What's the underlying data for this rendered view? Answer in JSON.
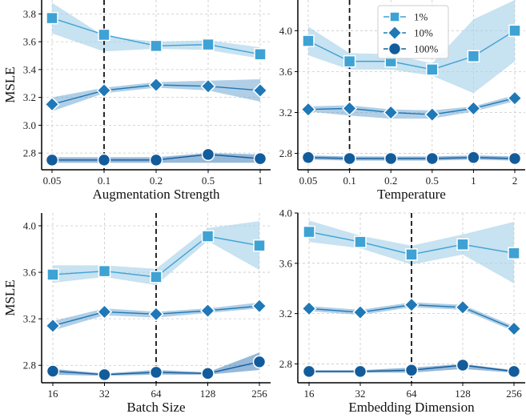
{
  "chart_data": [
    {
      "type": "line",
      "xlabel": "Augmentation Strength",
      "ylabel": "MSLE",
      "categories": [
        "0.05",
        "0.1",
        "0.2",
        "0.5",
        "1"
      ],
      "ylim": [
        2.68,
        3.9
      ],
      "yticks": [
        "2.8",
        "3.0",
        "3.2",
        "3.4",
        "3.6",
        "3.8"
      ],
      "vline_at": "0.1",
      "series": [
        {
          "name": "1%",
          "marker": "square",
          "values": [
            3.77,
            3.65,
            3.57,
            3.58,
            3.51
          ],
          "lower": [
            3.66,
            3.53,
            3.55,
            3.54,
            3.48
          ],
          "upper": [
            3.88,
            3.64,
            3.6,
            3.61,
            3.56
          ]
        },
        {
          "name": "10%",
          "marker": "diamond",
          "values": [
            3.15,
            3.25,
            3.29,
            3.28,
            3.25
          ],
          "lower": [
            3.1,
            3.23,
            3.27,
            3.25,
            3.17
          ],
          "upper": [
            3.2,
            3.27,
            3.31,
            3.32,
            3.33
          ]
        },
        {
          "name": "100%",
          "marker": "circle",
          "values": [
            2.75,
            2.75,
            2.75,
            2.79,
            2.76
          ],
          "lower": [
            2.73,
            2.73,
            2.73,
            2.73,
            2.73
          ],
          "upper": [
            2.77,
            2.77,
            2.77,
            2.8,
            2.79
          ]
        }
      ]
    },
    {
      "type": "line",
      "xlabel": "Temperature",
      "ylabel": "",
      "categories": [
        "0.05",
        "0.1",
        "0.2",
        "0.5",
        "1",
        "2"
      ],
      "ylim": [
        2.64,
        4.3
      ],
      "yticks": [
        "2.8",
        "3.2",
        "3.6",
        "4.0"
      ],
      "vline_at": "0.1",
      "series": [
        {
          "name": "1%",
          "marker": "square",
          "values": [
            3.9,
            3.7,
            3.7,
            3.62,
            3.75,
            4.0
          ],
          "lower": [
            3.76,
            3.62,
            3.62,
            3.56,
            3.39,
            3.7
          ],
          "upper": [
            4.04,
            3.78,
            3.77,
            3.68,
            4.11,
            4.3
          ]
        },
        {
          "name": "10%",
          "marker": "diamond",
          "values": [
            3.23,
            3.24,
            3.2,
            3.18,
            3.24,
            3.34
          ],
          "lower": [
            3.21,
            3.17,
            3.14,
            3.14,
            3.21,
            3.31
          ],
          "upper": [
            3.26,
            3.27,
            3.23,
            3.22,
            3.26,
            3.37
          ]
        },
        {
          "name": "100%",
          "marker": "circle",
          "values": [
            2.76,
            2.75,
            2.75,
            2.75,
            2.76,
            2.75
          ],
          "lower": [
            2.74,
            2.73,
            2.73,
            2.73,
            2.74,
            2.73
          ],
          "upper": [
            2.78,
            2.77,
            2.77,
            2.77,
            2.78,
            2.77
          ]
        }
      ],
      "legend": {
        "location": "top-center",
        "entries": [
          "1%",
          "10%",
          "100%"
        ]
      }
    },
    {
      "type": "line",
      "xlabel": "Batch Size",
      "ylabel": "MSLE",
      "categories": [
        "16",
        "32",
        "64",
        "128",
        "256"
      ],
      "ylim": [
        2.65,
        4.11
      ],
      "yticks": [
        "2.8",
        "3.2",
        "3.6",
        "4.0"
      ],
      "vline_at": "64",
      "series": [
        {
          "name": "1%",
          "marker": "square",
          "values": [
            3.58,
            3.61,
            3.56,
            3.91,
            3.83
          ],
          "lower": [
            3.51,
            3.56,
            3.49,
            3.87,
            3.62
          ],
          "upper": [
            3.66,
            3.66,
            3.63,
            3.98,
            4.04
          ]
        },
        {
          "name": "10%",
          "marker": "diamond",
          "values": [
            3.14,
            3.26,
            3.24,
            3.27,
            3.31
          ],
          "lower": [
            3.1,
            3.23,
            3.21,
            3.25,
            3.29
          ],
          "upper": [
            3.18,
            3.29,
            3.26,
            3.29,
            3.34
          ]
        },
        {
          "name": "100%",
          "marker": "circle",
          "values": [
            2.75,
            2.72,
            2.74,
            2.73,
            2.83
          ],
          "lower": [
            2.72,
            2.71,
            2.72,
            2.72,
            2.76
          ],
          "upper": [
            2.77,
            2.73,
            2.76,
            2.74,
            2.91
          ]
        }
      ]
    },
    {
      "type": "line",
      "xlabel": "Embedding Dimension",
      "ylabel": "",
      "categories": [
        "16",
        "32",
        "64",
        "128",
        "256"
      ],
      "ylim": [
        2.65,
        4.0
      ],
      "yticks": [
        "2.8",
        "3.2",
        "3.6",
        "4.0"
      ],
      "vline_at": "64",
      "series": [
        {
          "name": "1%",
          "marker": "square",
          "values": [
            3.85,
            3.77,
            3.67,
            3.75,
            3.68
          ],
          "lower": [
            3.77,
            3.72,
            3.59,
            3.67,
            3.44
          ],
          "upper": [
            3.94,
            3.82,
            3.74,
            3.83,
            3.93
          ]
        },
        {
          "name": "10%",
          "marker": "diamond",
          "values": [
            3.24,
            3.21,
            3.27,
            3.25,
            3.08
          ],
          "lower": [
            3.22,
            3.19,
            3.25,
            3.23,
            3.06
          ],
          "upper": [
            3.26,
            3.23,
            3.29,
            3.27,
            3.1
          ]
        },
        {
          "name": "100%",
          "marker": "circle",
          "values": [
            2.74,
            2.74,
            2.75,
            2.79,
            2.74
          ],
          "lower": [
            2.73,
            2.73,
            2.73,
            2.76,
            2.73
          ],
          "upper": [
            2.75,
            2.75,
            2.77,
            2.8,
            2.75
          ]
        }
      ]
    }
  ],
  "colors": {
    "1%": "#3fa2d4",
    "10%": "#1f78b7",
    "100%": "#135c9c",
    "band_1%": "#a9d2ea",
    "band_10%": "#6fa8d2",
    "band_100%": "#3f7fba",
    "grid": "#c8c8c8",
    "vline": "#111111"
  }
}
